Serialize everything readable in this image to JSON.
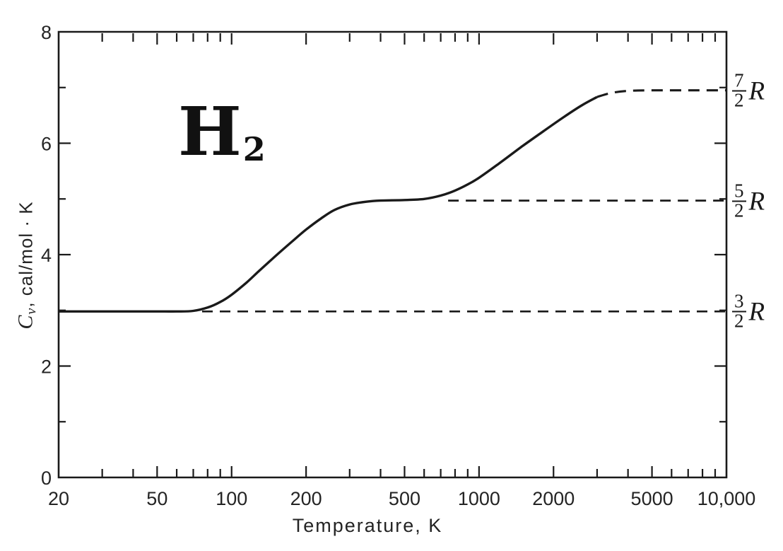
{
  "colors": {
    "ink": "#1a1a1a",
    "background": "#ffffff"
  },
  "annotation": {
    "symbol": "H",
    "subscript": "2"
  },
  "axis_titles": {
    "x": "Temperature, K",
    "y_symbol": "C",
    "y_symbol_sub": "v",
    "y_rest": ", cal/mol · K"
  },
  "chart_data": {
    "type": "line",
    "title": "",
    "xlabel": "Temperature, K",
    "ylabel": "Cv, cal/mol · K",
    "x_scale": "log",
    "xlim": [
      20,
      10000
    ],
    "ylim": [
      0,
      8
    ],
    "grid": false,
    "x_ticks": [
      {
        "value": 20,
        "label": "20"
      },
      {
        "value": 50,
        "label": "50"
      },
      {
        "value": 100,
        "label": "100"
      },
      {
        "value": 200,
        "label": "200"
      },
      {
        "value": 500,
        "label": "500"
      },
      {
        "value": 1000,
        "label": "1000"
      },
      {
        "value": 2000,
        "label": "2000"
      },
      {
        "value": 5000,
        "label": "5000"
      },
      {
        "value": 10000,
        "label": "10,000"
      }
    ],
    "x_minor_ticks": [
      30,
      40,
      60,
      70,
      80,
      90,
      300,
      400,
      600,
      700,
      800,
      900,
      3000,
      4000,
      6000,
      7000,
      8000,
      9000
    ],
    "y_ticks": [
      {
        "value": 0,
        "label": "0"
      },
      {
        "value": 2,
        "label": "2"
      },
      {
        "value": 4,
        "label": "4"
      },
      {
        "value": 6,
        "label": "6"
      },
      {
        "value": 8,
        "label": "8"
      }
    ],
    "y_minor_ticks": [
      1,
      3,
      5,
      7
    ],
    "series": [
      {
        "name": "Cv of H2 (solid curve)",
        "style": "solid",
        "points": [
          [
            20,
            2.98
          ],
          [
            30,
            2.98
          ],
          [
            40,
            2.98
          ],
          [
            50,
            2.98
          ],
          [
            60,
            2.98
          ],
          [
            70,
            2.99
          ],
          [
            80,
            3.05
          ],
          [
            90,
            3.15
          ],
          [
            100,
            3.28
          ],
          [
            115,
            3.5
          ],
          [
            130,
            3.72
          ],
          [
            150,
            3.97
          ],
          [
            175,
            4.23
          ],
          [
            200,
            4.45
          ],
          [
            230,
            4.65
          ],
          [
            260,
            4.8
          ],
          [
            300,
            4.9
          ],
          [
            350,
            4.95
          ],
          [
            400,
            4.97
          ],
          [
            500,
            4.98
          ],
          [
            600,
            5.0
          ],
          [
            700,
            5.06
          ],
          [
            800,
            5.15
          ],
          [
            900,
            5.26
          ],
          [
            1000,
            5.38
          ],
          [
            1200,
            5.63
          ],
          [
            1500,
            5.95
          ],
          [
            1800,
            6.2
          ],
          [
            2200,
            6.47
          ],
          [
            2600,
            6.68
          ],
          [
            3000,
            6.83
          ]
        ]
      },
      {
        "name": "Cv of H2 (dashed extrapolation)",
        "style": "dashed",
        "points": [
          [
            3000,
            6.83
          ],
          [
            3400,
            6.9
          ],
          [
            4000,
            6.94
          ],
          [
            5000,
            6.95
          ],
          [
            6500,
            6.95
          ],
          [
            8000,
            6.95
          ],
          [
            10000,
            6.95
          ]
        ]
      }
    ],
    "reference_lines": [
      {
        "value": 2.98,
        "from": 76,
        "to": 10000
      },
      {
        "value": 4.97,
        "from": 750,
        "to": 10000
      }
    ],
    "right_labels": [
      {
        "numerator": "7",
        "denominator": "2",
        "suffix": "R",
        "value": 6.95
      },
      {
        "numerator": "5",
        "denominator": "2",
        "suffix": "R",
        "value": 4.97
      },
      {
        "numerator": "3",
        "denominator": "2",
        "suffix": "R",
        "value": 2.98
      }
    ]
  }
}
